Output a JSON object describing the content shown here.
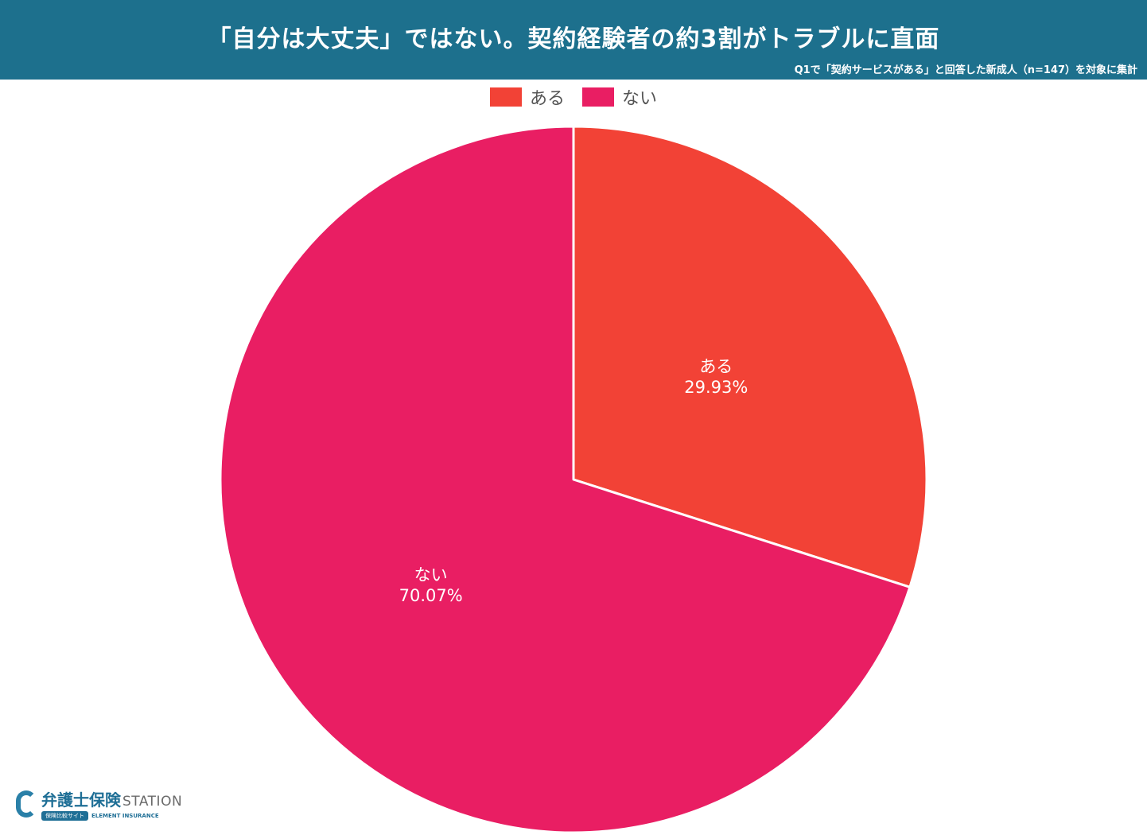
{
  "header": {
    "title": "「自分は大丈夫」ではない。契約経験者の約3割がトラブルに直面",
    "subtitle": "Q1で「契約サービスがある」と回答した新成人（n=147）を対象に集計",
    "background_color": "#1d708d"
  },
  "chart_data": {
    "type": "pie",
    "title": "「自分は大丈夫」ではない。契約経験者の約3割がトラブルに直面",
    "subtitle": "Q1で「契約サービスがある」と回答した新成人（n=147）を対象に集計",
    "legend_position": "top",
    "slices": [
      {
        "label": "ある",
        "value": 29.93,
        "value_label": "29.93%",
        "color": "#f24236"
      },
      {
        "label": "ない",
        "value": 70.07,
        "value_label": "70.07%",
        "color": "#e91e63"
      }
    ]
  },
  "logo": {
    "name_jp": "弁護士保険",
    "name_en": "STATION",
    "tag": "保険比較サイト",
    "tagline": "ELEMENT INSURANCE",
    "color": "#1f6f96"
  }
}
